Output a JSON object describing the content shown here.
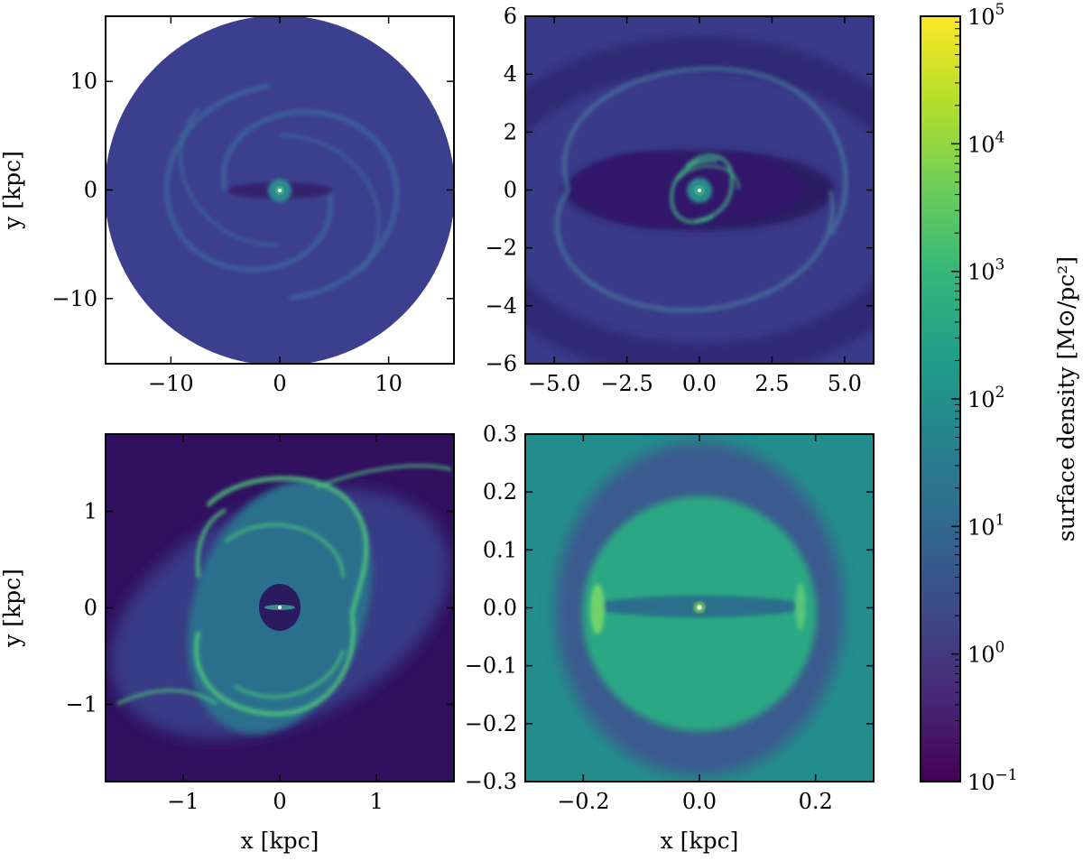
{
  "chart_data": {
    "type": "heatmap",
    "panels": [
      {
        "id": "top-left",
        "xlim": [
          -16,
          16
        ],
        "ylim": [
          -16,
          16
        ],
        "xticks": [
          -10,
          0,
          10
        ],
        "xtick_labels": [
          "−10",
          "0",
          "10"
        ],
        "yticks": [
          -10,
          0,
          10
        ],
        "ytick_labels": [
          "−10",
          "0",
          "10"
        ],
        "xlabel": "",
        "ylabel": "y [kpc]",
        "map_extent_radius": 16
      },
      {
        "id": "top-right",
        "xlim": [
          -6,
          6
        ],
        "ylim": [
          -6,
          6
        ],
        "xticks": [
          -5,
          -2.5,
          0,
          2.5,
          5
        ],
        "xtick_labels": [
          "−5.0",
          "−2.5",
          "0.0",
          "2.5",
          "5.0"
        ],
        "yticks": [
          -6,
          -4,
          -2,
          0,
          2,
          4,
          6
        ],
        "ytick_labels": [
          "−6",
          "−4",
          "−2",
          "0",
          "2",
          "4",
          "6"
        ],
        "xlabel": "",
        "ylabel": ""
      },
      {
        "id": "bottom-left",
        "xlim": [
          -1.8,
          1.8
        ],
        "ylim": [
          -1.8,
          1.8
        ],
        "xticks": [
          -1,
          0,
          1
        ],
        "xtick_labels": [
          "−1",
          "0",
          "1"
        ],
        "yticks": [
          -1,
          0,
          1
        ],
        "ytick_labels": [
          "−1",
          "0",
          "1"
        ],
        "xlabel": "x [kpc]",
        "ylabel": "y [kpc]"
      },
      {
        "id": "bottom-right",
        "xlim": [
          -0.3,
          0.3
        ],
        "ylim": [
          -0.3,
          0.3
        ],
        "xticks": [
          -0.2,
          0,
          0.2
        ],
        "xtick_labels": [
          "−0.2",
          "0.0",
          "0.2"
        ],
        "yticks": [
          -0.3,
          -0.2,
          -0.1,
          0,
          0.1,
          0.2,
          0.3
        ],
        "ytick_labels": [
          "−0.3",
          "−0.2",
          "−0.1",
          "0.0",
          "0.1",
          "0.2",
          "0.3"
        ],
        "xlabel": "x [kpc]",
        "ylabel": ""
      }
    ],
    "colorbar": {
      "label": "surface density [M⊙/pc²]",
      "scale": "log",
      "range": [
        0.1,
        100000
      ],
      "ticks": [
        {
          "value": 0.1,
          "base": "10",
          "exp": "−1"
        },
        {
          "value": 1,
          "base": "10",
          "exp": "0"
        },
        {
          "value": 10,
          "base": "10",
          "exp": "1"
        },
        {
          "value": 100,
          "base": "10",
          "exp": "2"
        },
        {
          "value": 1000,
          "base": "10",
          "exp": "3"
        },
        {
          "value": 10000,
          "base": "10",
          "exp": "4"
        },
        {
          "value": 100000,
          "base": "10",
          "exp": "5"
        }
      ],
      "colormap": "viridis",
      "colors": [
        "#440154",
        "#482878",
        "#3e4989",
        "#31688e",
        "#26828e",
        "#1f9e89",
        "#35b779",
        "#6ece58",
        "#b5de2b",
        "#fde725"
      ]
    }
  }
}
